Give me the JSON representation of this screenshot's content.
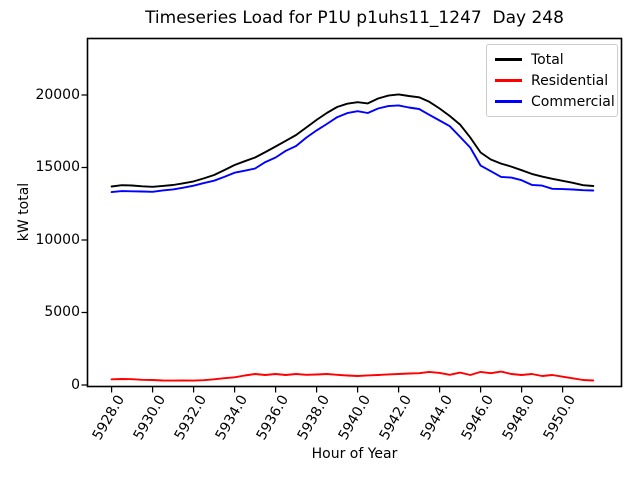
{
  "title": "Timeseries Load for P1U p1uhs11_1247  Day 248",
  "chart_data": {
    "type": "line",
    "title": "Timeseries Load for P1U p1uhs11_1247  Day 248",
    "xlabel": "Hour of Year",
    "ylabel": "kW total",
    "legend_position": "upper right",
    "grid": false,
    "xlim": [
      5926.8,
      5952.9
    ],
    "ylim": [
      -140,
      23930
    ],
    "x_ticks": [
      "5928.0",
      "5930.0",
      "5932.0",
      "5934.0",
      "5936.0",
      "5938.0",
      "5940.0",
      "5942.0",
      "5944.0",
      "5946.0",
      "5948.0",
      "5950.0"
    ],
    "y_ticks": [
      "0",
      "5000",
      "10000",
      "15000",
      "20000"
    ],
    "x": [
      5928.0,
      5928.5,
      5929.0,
      5929.5,
      5930.0,
      5930.5,
      5931.0,
      5931.5,
      5932.0,
      5932.5,
      5933.0,
      5933.5,
      5934.0,
      5934.5,
      5935.0,
      5935.5,
      5936.0,
      5936.5,
      5937.0,
      5937.5,
      5938.0,
      5938.5,
      5939.0,
      5939.5,
      5940.0,
      5940.5,
      5941.0,
      5941.5,
      5942.0,
      5942.5,
      5943.0,
      5943.5,
      5944.0,
      5944.5,
      5945.0,
      5945.5,
      5946.0,
      5946.5,
      5947.0,
      5947.5,
      5948.0,
      5948.5,
      5949.0,
      5949.5,
      5950.0,
      5950.5,
      5951.0,
      5951.5
    ],
    "series": [
      {
        "name": "Total",
        "color": "#000000",
        "values": [
          13690,
          13780,
          13760,
          13700,
          13670,
          13730,
          13790,
          13910,
          14040,
          14250,
          14480,
          14820,
          15170,
          15430,
          15690,
          16060,
          16450,
          16840,
          17240,
          17760,
          18280,
          18760,
          19170,
          19400,
          19500,
          19420,
          19760,
          19960,
          20040,
          19930,
          19840,
          19530,
          19070,
          18550,
          17960,
          17060,
          16030,
          15550,
          15270,
          15060,
          14810,
          14560,
          14370,
          14220,
          14080,
          13940,
          13780,
          13720
        ]
      },
      {
        "name": "Residential",
        "color": "#ff0000",
        "values": [
          390,
          410,
          400,
          360,
          345,
          310,
          300,
          305,
          300,
          330,
          390,
          470,
          530,
          650,
          760,
          690,
          760,
          690,
          760,
          700,
          720,
          760,
          700,
          650,
          620,
          660,
          690,
          730,
          760,
          790,
          810,
          900,
          830,
          700,
          850,
          690,
          900,
          810,
          920,
          760,
          690,
          760,
          620,
          690,
          570,
          460,
          345,
          310
        ]
      },
      {
        "name": "Commercial",
        "color": "#0000ff",
        "values": [
          13300,
          13370,
          13360,
          13340,
          13325,
          13420,
          13490,
          13605,
          13740,
          13920,
          14090,
          14350,
          14640,
          14780,
          14930,
          15370,
          15690,
          16150,
          16480,
          17060,
          17560,
          18000,
          18470,
          18750,
          18880,
          18760,
          19070,
          19230,
          19280,
          19140,
          19030,
          18630,
          18240,
          17850,
          17110,
          16370,
          15130,
          14740,
          14350,
          14300,
          14120,
          13800,
          13750,
          13530,
          13510,
          13480,
          13435,
          13410
        ]
      }
    ]
  }
}
